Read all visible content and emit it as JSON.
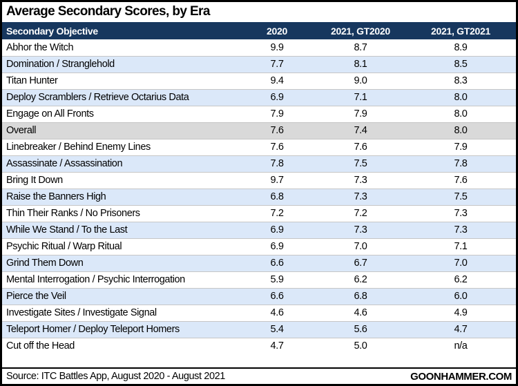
{
  "title": "Average Secondary Scores, by Era",
  "chart_data": {
    "type": "table",
    "title": "Average Secondary Scores, by Era",
    "columns": [
      "Secondary Objective",
      "2020",
      "2021, GT2020",
      "2021, GT2021"
    ],
    "rows": [
      {
        "cells": [
          "Abhor the Witch",
          "9.9",
          "8.7",
          "8.9"
        ],
        "variant": "plain"
      },
      {
        "cells": [
          "Domination / Stranglehold",
          "7.7",
          "8.1",
          "8.5"
        ],
        "variant": "alt"
      },
      {
        "cells": [
          "Titan Hunter",
          "9.4",
          "9.0",
          "8.3"
        ],
        "variant": "plain"
      },
      {
        "cells": [
          "Deploy Scramblers / Retrieve Octarius Data",
          "6.9",
          "7.1",
          "8.0"
        ],
        "variant": "alt"
      },
      {
        "cells": [
          "Engage on All Fronts",
          "7.9",
          "7.9",
          "8.0"
        ],
        "variant": "plain"
      },
      {
        "cells": [
          "Overall",
          "7.6",
          "7.4",
          "8.0"
        ],
        "variant": "highlight"
      },
      {
        "cells": [
          "Linebreaker / Behind Enemy Lines",
          "7.6",
          "7.6",
          "7.9"
        ],
        "variant": "plain"
      },
      {
        "cells": [
          "Assassinate / Assassination",
          "7.8",
          "7.5",
          "7.8"
        ],
        "variant": "alt"
      },
      {
        "cells": [
          "Bring It Down",
          "9.7",
          "7.3",
          "7.6"
        ],
        "variant": "plain"
      },
      {
        "cells": [
          "Raise the Banners High",
          "6.8",
          "7.3",
          "7.5"
        ],
        "variant": "alt"
      },
      {
        "cells": [
          "Thin Their Ranks / No Prisoners",
          "7.2",
          "7.2",
          "7.3"
        ],
        "variant": "plain"
      },
      {
        "cells": [
          "While We Stand / To the Last",
          "6.9",
          "7.3",
          "7.3"
        ],
        "variant": "alt"
      },
      {
        "cells": [
          "Psychic Ritual / Warp Ritual",
          "6.9",
          "7.0",
          "7.1"
        ],
        "variant": "plain"
      },
      {
        "cells": [
          "Grind Them Down",
          "6.6",
          "6.7",
          "7.0"
        ],
        "variant": "alt"
      },
      {
        "cells": [
          "Mental Interrogation / Psychic Interrogation",
          "5.9",
          "6.2",
          "6.2"
        ],
        "variant": "plain"
      },
      {
        "cells": [
          "Pierce the Veil",
          "6.6",
          "6.8",
          "6.0"
        ],
        "variant": "alt"
      },
      {
        "cells": [
          "Investigate Sites / Investigate Signal",
          "4.6",
          "4.6",
          "4.9"
        ],
        "variant": "plain"
      },
      {
        "cells": [
          "Teleport Homer / Deploy Teleport Homers",
          "5.4",
          "5.6",
          "4.7"
        ],
        "variant": "alt"
      },
      {
        "cells": [
          "Cut off the Head",
          "4.7",
          "5.0",
          "n/a"
        ],
        "variant": "plain"
      }
    ],
    "highlighted_row": "Overall",
    "legend_position": "none",
    "grid": "row-lines"
  },
  "footer": {
    "source": "Source: ITC Battles App, August 2020 - August 2021",
    "brand": "GOONHAMMER.COM"
  },
  "colors": {
    "header_bg": "#17375E",
    "header_text": "#FFFFFF",
    "alt_row_bg": "#DBE8F9",
    "highlight_row_bg": "#D9D9D9",
    "row_line": "#C6C6C6",
    "border": "#000000",
    "text": "#000000"
  }
}
